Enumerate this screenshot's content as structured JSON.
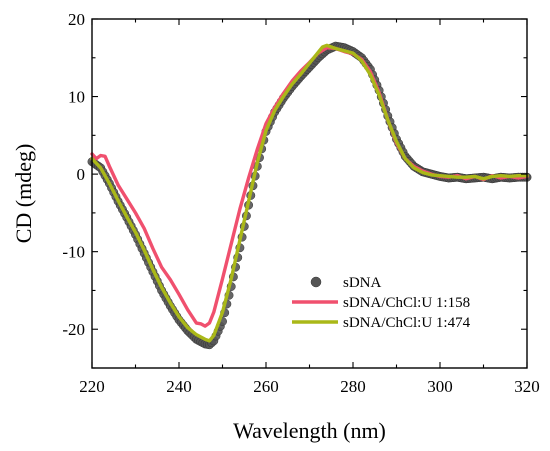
{
  "chart_data": {
    "type": "line",
    "xlabel": "Wavelength (nm)",
    "ylabel": "CD (mdeg)",
    "xlim": [
      220,
      320
    ],
    "ylim": [
      -25,
      20
    ],
    "xticks": [
      220,
      240,
      260,
      280,
      300,
      320
    ],
    "yticks": [
      -20,
      -10,
      0,
      10,
      20
    ],
    "grid": false,
    "legend_position": "bottom-center",
    "series": [
      {
        "name": "sDNA",
        "style": "markers",
        "color": "#555555",
        "points": [
          [
            220,
            1.6
          ],
          [
            222,
            0.8
          ],
          [
            224,
            -1.2
          ],
          [
            226,
            -3.5
          ],
          [
            228,
            -5.6
          ],
          [
            230,
            -7.8
          ],
          [
            232,
            -10.2
          ],
          [
            234,
            -12.6
          ],
          [
            236,
            -15.0
          ],
          [
            238,
            -17.0
          ],
          [
            240,
            -18.8
          ],
          [
            242,
            -20.2
          ],
          [
            244,
            -21.3
          ],
          [
            246,
            -21.9
          ],
          [
            247,
            -22.0
          ],
          [
            248,
            -21.5
          ],
          [
            250,
            -19.0
          ],
          [
            252,
            -14.5
          ],
          [
            254,
            -9.5
          ],
          [
            256,
            -4.0
          ],
          [
            258,
            1.0
          ],
          [
            260,
            5.5
          ],
          [
            262,
            8.0
          ],
          [
            264,
            9.8
          ],
          [
            266,
            11.3
          ],
          [
            268,
            12.6
          ],
          [
            270,
            13.8
          ],
          [
            272,
            15.0
          ],
          [
            274,
            16.0
          ],
          [
            276,
            16.5
          ],
          [
            278,
            16.3
          ],
          [
            280,
            15.8
          ],
          [
            282,
            15.0
          ],
          [
            284,
            13.5
          ],
          [
            286,
            10.8
          ],
          [
            288,
            7.5
          ],
          [
            290,
            4.5
          ],
          [
            292,
            2.3
          ],
          [
            294,
            1.0
          ],
          [
            296,
            0.3
          ],
          [
            298,
            0.0
          ],
          [
            300,
            -0.3
          ],
          [
            302,
            -0.5
          ],
          [
            304,
            -0.4
          ],
          [
            306,
            -0.6
          ],
          [
            308,
            -0.5
          ],
          [
            310,
            -0.4
          ],
          [
            312,
            -0.6
          ],
          [
            314,
            -0.4
          ],
          [
            316,
            -0.5
          ],
          [
            318,
            -0.4
          ],
          [
            320,
            -0.4
          ]
        ]
      },
      {
        "name": "sDNA/ChCl:U 1:158",
        "style": "line",
        "color": "#f0506e",
        "points": [
          [
            220,
            2.6
          ],
          [
            221,
            2.0
          ],
          [
            222,
            2.4
          ],
          [
            223,
            2.3
          ],
          [
            224,
            1.0
          ],
          [
            226,
            -1.4
          ],
          [
            228,
            -3.2
          ],
          [
            230,
            -5.0
          ],
          [
            232,
            -7.0
          ],
          [
            234,
            -9.6
          ],
          [
            236,
            -12.0
          ],
          [
            238,
            -13.6
          ],
          [
            240,
            -15.5
          ],
          [
            242,
            -17.5
          ],
          [
            244,
            -19.2
          ],
          [
            245,
            -19.3
          ],
          [
            246,
            -19.6
          ],
          [
            247,
            -19.2
          ],
          [
            248,
            -17.8
          ],
          [
            250,
            -13.5
          ],
          [
            252,
            -9.0
          ],
          [
            254,
            -4.5
          ],
          [
            256,
            -0.5
          ],
          [
            258,
            3.2
          ],
          [
            260,
            6.5
          ],
          [
            262,
            8.6
          ],
          [
            264,
            10.4
          ],
          [
            266,
            12.0
          ],
          [
            268,
            13.3
          ],
          [
            270,
            14.4
          ],
          [
            272,
            15.6
          ],
          [
            274,
            16.3
          ],
          [
            276,
            16.2
          ],
          [
            278,
            15.8
          ],
          [
            280,
            15.5
          ],
          [
            282,
            14.8
          ],
          [
            284,
            13.2
          ],
          [
            286,
            10.5
          ],
          [
            288,
            7.0
          ],
          [
            290,
            4.0
          ],
          [
            292,
            2.0
          ],
          [
            294,
            1.0
          ],
          [
            296,
            0.4
          ],
          [
            298,
            0.0
          ],
          [
            300,
            -0.3
          ],
          [
            302,
            -0.4
          ],
          [
            304,
            -0.2
          ],
          [
            306,
            -0.6
          ],
          [
            308,
            -0.3
          ],
          [
            310,
            -0.7
          ],
          [
            312,
            -0.2
          ],
          [
            314,
            -0.5
          ],
          [
            316,
            -0.3
          ],
          [
            318,
            -0.5
          ],
          [
            320,
            -0.3
          ]
        ]
      },
      {
        "name": "sDNA/ChCl:U 1:474",
        "style": "line",
        "color": "#aab818",
        "points": [
          [
            220,
            2.0
          ],
          [
            222,
            0.8
          ],
          [
            224,
            -1.2
          ],
          [
            226,
            -3.4
          ],
          [
            228,
            -5.5
          ],
          [
            230,
            -7.5
          ],
          [
            232,
            -9.8
          ],
          [
            234,
            -12.3
          ],
          [
            236,
            -14.6
          ],
          [
            238,
            -16.6
          ],
          [
            240,
            -18.4
          ],
          [
            242,
            -19.8
          ],
          [
            244,
            -20.7
          ],
          [
            246,
            -21.3
          ],
          [
            247,
            -21.5
          ],
          [
            248,
            -20.8
          ],
          [
            250,
            -17.8
          ],
          [
            252,
            -13.5
          ],
          [
            254,
            -8.5
          ],
          [
            256,
            -3.5
          ],
          [
            258,
            1.5
          ],
          [
            260,
            5.6
          ],
          [
            262,
            8.2
          ],
          [
            264,
            10.0
          ],
          [
            266,
            11.6
          ],
          [
            268,
            12.9
          ],
          [
            270,
            14.3
          ],
          [
            272,
            15.7
          ],
          [
            273,
            16.4
          ],
          [
            274,
            16.6
          ],
          [
            276,
            16.2
          ],
          [
            278,
            15.9
          ],
          [
            280,
            15.6
          ],
          [
            282,
            14.6
          ],
          [
            284,
            12.8
          ],
          [
            286,
            10.2
          ],
          [
            288,
            7.0
          ],
          [
            290,
            4.2
          ],
          [
            292,
            2.0
          ],
          [
            294,
            0.8
          ],
          [
            296,
            0.2
          ],
          [
            298,
            -0.1
          ],
          [
            300,
            -0.2
          ],
          [
            302,
            -0.3
          ],
          [
            304,
            -0.4
          ],
          [
            306,
            -0.4
          ],
          [
            308,
            -0.3
          ],
          [
            310,
            -0.6
          ],
          [
            312,
            -0.3
          ],
          [
            314,
            -0.2
          ],
          [
            316,
            -0.3
          ],
          [
            318,
            -0.2
          ],
          [
            320,
            -0.2
          ]
        ]
      }
    ]
  }
}
